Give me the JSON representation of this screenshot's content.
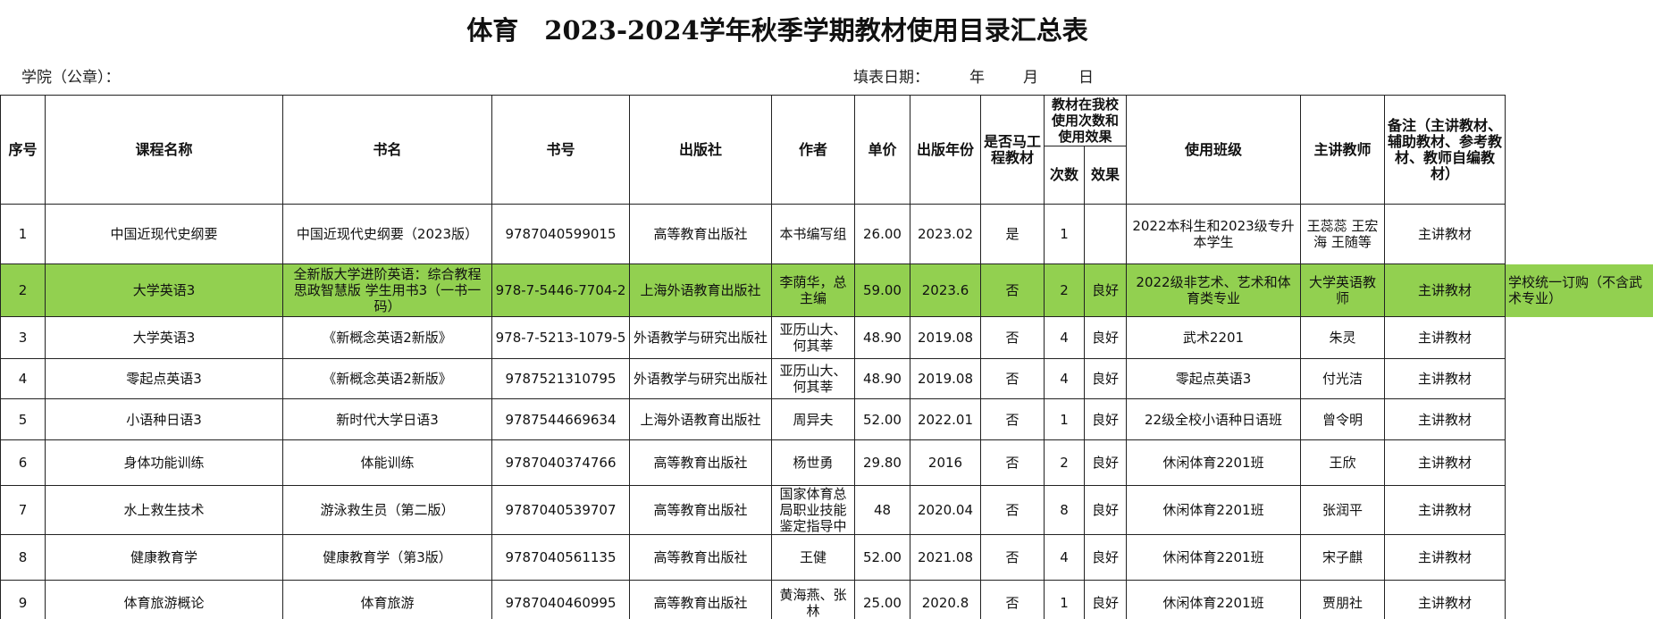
{
  "header": {
    "title": "体育　2023-2024学年秋季学期教材使用目录汇总表",
    "college": "学院（公章）：",
    "date_label": "填表日期：",
    "year": "年",
    "month": "月",
    "day": "日"
  },
  "table": {
    "columns": [
      "序号",
      "课程名称",
      "书名",
      "书号",
      "出版社",
      "作者",
      "单价",
      "出版年份",
      "是否马工程教材",
      "教材在我校使用次数和使用效果",
      "使用班级",
      "主讲教师",
      "备注（主讲教材、辅助教材、参考教材、教师自编教材）"
    ],
    "sub_columns": [
      "次数",
      "效果"
    ],
    "rows": [
      {
        "cells": [
          "1",
          "中国近现代史纲要",
          "中国近现代史纲要（2023版）",
          "9787040599015",
          "高等教育出版社",
          "本书编写组",
          "26.00",
          "2023.02",
          "是",
          "1",
          null,
          "2022本科生和2023级专升本学生",
          "王蕊蕊 王宏海 王随等",
          "主讲教材"
        ]
      },
      {
        "cells": [
          "2",
          "大学英语3",
          "全新版大学进阶英语：综合教程 思政智慧版 学生用书3（一书一码）",
          "978-7-5446-7704-2",
          "上海外语教育出版社",
          "李荫华，总主编",
          "59.00",
          "2023.6",
          "否",
          "2",
          "良好",
          "2022级非艺术、艺术和体育类专业",
          "大学英语教师",
          "主讲教材"
        ],
        "note": "学校统一订购（不含武术专业）"
      },
      {
        "cells": [
          "3",
          "大学英语3",
          "《新概念英语2新版》",
          "978-7-5213-1079-5",
          "外语教学与研究出版社",
          "亚历山大、何其莘",
          "48.90",
          "2019.08",
          "否",
          "4",
          "良好",
          "武术2201",
          "朱灵",
          "主讲教材"
        ]
      },
      {
        "cells": [
          "4",
          "零起点英语3",
          "《新概念英语2新版》",
          "9787521310795",
          "外语教学与研究出版社",
          "亚历山大、何其莘",
          "48.90",
          "2019.08",
          "否",
          "4",
          "良好",
          "零起点英语3",
          "付光洁",
          "主讲教材"
        ]
      },
      {
        "cells": [
          "5",
          "小语种日语3",
          "新时代大学日语3",
          "9787544669634",
          "上海外语教育出版社",
          "周异夫",
          "52.00",
          "2022.01",
          "否",
          "1",
          "良好",
          "22级全校小语种日语班",
          "曾令明",
          "主讲教材"
        ]
      },
      {
        "cells": [
          "6",
          "身体功能训练",
          "体能训练",
          "9787040374766",
          "高等教育出版社",
          "杨世勇",
          "29.80",
          "2016",
          "否",
          "2",
          "良好",
          "休闲体育2201班",
          "王欣",
          "主讲教材"
        ]
      },
      {
        "cells": [
          "7",
          "水上救生技术",
          "游泳救生员（第二版）",
          "9787040539707",
          "高等教育出版社",
          "国家体育总局职业技能鉴定指导中",
          "48",
          "2020.04",
          "否",
          "8",
          "良好",
          "休闲体育2201班",
          "张润平",
          "主讲教材"
        ]
      },
      {
        "cells": [
          "8",
          "健康教育学",
          "健康教育学（第3版）",
          "9787040561135",
          "高等教育出版社",
          "王健",
          "52.00",
          "2021.08",
          "否",
          "4",
          "良好",
          "休闲体育2201班",
          "宋子麒",
          "主讲教材"
        ]
      },
      {
        "cells": [
          "9",
          "体育旅游概论",
          "体育旅游",
          "9787040460995",
          "高等教育出版社",
          "黄海燕、张林",
          "25.00",
          "2020.8",
          "否",
          "1",
          "良好",
          "休闲体育2201班",
          "贾朋社",
          "主讲教材"
        ]
      }
    ]
  }
}
